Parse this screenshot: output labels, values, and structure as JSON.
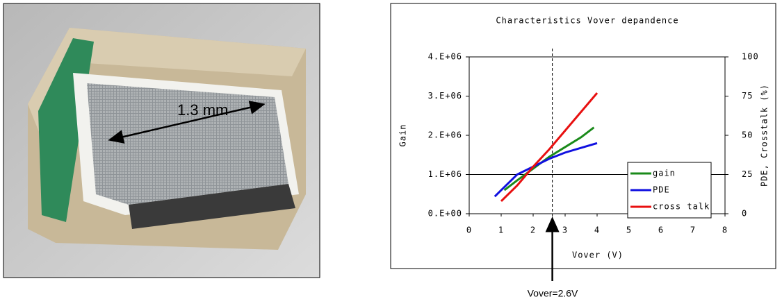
{
  "photo": {
    "label": "1.3 mm"
  },
  "chart_data": {
    "type": "line",
    "title": "Characteristics Vover depandence",
    "xlabel": "Vover (V)",
    "ylabel": "Gain",
    "y2label": "PDE, Crosstalk (%)",
    "annotation": "Vover=2.6V",
    "vline": 2.6,
    "hline": 1000000,
    "xlim": [
      0,
      8
    ],
    "xticks": [
      0,
      1,
      2,
      3,
      4,
      5,
      6,
      7,
      8
    ],
    "ylim": [
      0,
      4000000
    ],
    "yticks": [
      {
        "value": 0,
        "label": "0.E+00"
      },
      {
        "value": 1000000,
        "label": "1.E+06"
      },
      {
        "value": 2000000,
        "label": "2.E+06"
      },
      {
        "value": 3000000,
        "label": "3.E+06"
      },
      {
        "value": 4000000,
        "label": "4.E+06"
      }
    ],
    "y2lim": [
      0,
      100
    ],
    "y2ticks": [
      0,
      25,
      50,
      75,
      100
    ],
    "legend": "lower right",
    "series": [
      {
        "name": "gain",
        "color": "#1a8a1a",
        "x": [
          1.1,
          1.5,
          2.0,
          2.5,
          3.0,
          3.5,
          3.9
        ],
        "values": [
          600000,
          850000,
          1150000,
          1450000,
          1700000,
          1950000,
          2200000
        ]
      },
      {
        "name": "PDE",
        "color": "#1010e0",
        "axis": "y2",
        "x": [
          0.8,
          1.0,
          1.5,
          2.0,
          2.5,
          3.0,
          3.5,
          4.0
        ],
        "values": [
          11,
          15,
          25,
          30,
          35,
          39,
          42,
          45
        ]
      },
      {
        "name": "cross talk",
        "color": "#e81010",
        "axis": "y2",
        "x": [
          1.0,
          1.5,
          2.0,
          2.5,
          3.0,
          3.5,
          4.0
        ],
        "values": [
          8,
          18,
          30,
          41,
          53,
          65,
          77
        ]
      }
    ]
  }
}
